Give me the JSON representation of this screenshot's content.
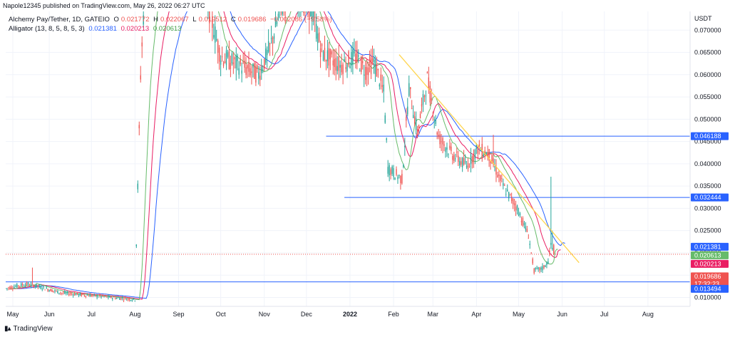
{
  "publish_line": "Napole12345 published on TradingView.com, May 26, 2022 06:27 UTC",
  "symbol_label": "Alchemy Pay/Tether, 1D, GATEIO",
  "ohlc": {
    "o_label": "O",
    "o": "0.021772",
    "h_label": "H",
    "h": "0.022067",
    "l_label": "L",
    "l": "0.019512",
    "c_label": "C",
    "c": "0.019686",
    "change": "−0.002086 (−9.58%)"
  },
  "indicator": {
    "name": "Alligator (13, 8, 5, 8, 5, 3)",
    "jaw": "0.021381",
    "teeth": "0.020213",
    "lips": "0.020613"
  },
  "brand": {
    "icon": "tv-logo-icon",
    "name": "TradingView"
  },
  "colors": {
    "up": "#26a69a",
    "down": "#ef5350",
    "jaw": "#2962ff",
    "teeth": "#e91e63",
    "lips": "#66bb6a",
    "hline": "#2962ff",
    "trend": "#ffd54f"
  },
  "chart_data": {
    "type": "candlestick",
    "currency_label": "USDT",
    "y_ticks": [
      "0.070000",
      "0.065000",
      "0.060000",
      "0.055000",
      "0.050000",
      "0.045000",
      "0.040000",
      "0.035000",
      "0.030000",
      "0.025000",
      "0.020000",
      "0.015000",
      "0.010000"
    ],
    "y_range": [
      0.008,
      0.0742
    ],
    "x_ticks": [
      "May",
      "Jun",
      "Jul",
      "Aug",
      "Sep",
      "Oct",
      "Nov",
      "Dec",
      "2022",
      "Feb",
      "Mar",
      "Apr",
      "May",
      "Jun",
      "Jul",
      "Aug"
    ],
    "x_range": [
      "2021-05-01",
      "2022-08-31"
    ],
    "horizontal_lines": [
      {
        "value": 0.046188,
        "label": "0.046188",
        "from": "2021-12-15"
      },
      {
        "value": 0.032444,
        "label": "0.032444",
        "from": "2021-12-28"
      },
      {
        "value": 0.013494,
        "label": "0.013494",
        "from": "2021-05-01"
      }
    ],
    "trend_line": {
      "from": {
        "x": "2022-02-05",
        "y": 0.0645
      },
      "to": {
        "x": "2022-06-13",
        "y": 0.0178
      }
    },
    "price_labels": [
      {
        "value": 0.021381,
        "label": "0.021381",
        "color": "jaw"
      },
      {
        "value": 0.020613,
        "label": "0.020613",
        "color": "lips"
      },
      {
        "value": 0.020213,
        "label": "0.020213",
        "color": "teeth"
      },
      {
        "value": 0.019686,
        "label": "0.019686",
        "sub": "17:32:23",
        "color": "down"
      }
    ],
    "current_price": 0.019686,
    "close_series": [
      {
        "x": "2021-05-01",
        "y": 0.012
      },
      {
        "x": "2021-05-15",
        "y": 0.013
      },
      {
        "x": "2021-05-20",
        "y": 0.0128
      },
      {
        "x": "2021-06-10",
        "y": 0.011
      },
      {
        "x": "2021-07-15",
        "y": 0.01
      },
      {
        "x": "2021-08-01",
        "y": 0.0095
      },
      {
        "x": "2021-08-05",
        "y": 0.06
      },
      {
        "x": "2021-08-08",
        "y": 0.08
      },
      {
        "x": "2021-08-25",
        "y": 0.085
      },
      {
        "x": "2021-09-20",
        "y": 0.078
      },
      {
        "x": "2021-10-01",
        "y": 0.064
      },
      {
        "x": "2021-10-15",
        "y": 0.062
      },
      {
        "x": "2021-10-28",
        "y": 0.06
      },
      {
        "x": "2021-11-05",
        "y": 0.066
      },
      {
        "x": "2021-11-12",
        "y": 0.074
      },
      {
        "x": "2021-11-20",
        "y": 0.08
      },
      {
        "x": "2021-12-05",
        "y": 0.074
      },
      {
        "x": "2021-12-12",
        "y": 0.065
      },
      {
        "x": "2021-12-25",
        "y": 0.062
      },
      {
        "x": "2022-01-05",
        "y": 0.064
      },
      {
        "x": "2022-01-12",
        "y": 0.061
      },
      {
        "x": "2022-01-18",
        "y": 0.063
      },
      {
        "x": "2022-01-25",
        "y": 0.056
      },
      {
        "x": "2022-01-28",
        "y": 0.039
      },
      {
        "x": "2022-02-07",
        "y": 0.0365
      },
      {
        "x": "2022-02-12",
        "y": 0.057
      },
      {
        "x": "2022-02-18",
        "y": 0.047
      },
      {
        "x": "2022-02-25",
        "y": 0.059
      },
      {
        "x": "2022-03-05",
        "y": 0.046
      },
      {
        "x": "2022-03-15",
        "y": 0.042
      },
      {
        "x": "2022-03-25",
        "y": 0.0395
      },
      {
        "x": "2022-04-02",
        "y": 0.0435
      },
      {
        "x": "2022-04-10",
        "y": 0.042
      },
      {
        "x": "2022-04-20",
        "y": 0.035
      },
      {
        "x": "2022-04-30",
        "y": 0.03
      },
      {
        "x": "2022-05-08",
        "y": 0.024
      },
      {
        "x": "2022-05-12",
        "y": 0.016
      },
      {
        "x": "2022-05-18",
        "y": 0.0165
      },
      {
        "x": "2022-05-22",
        "y": 0.018
      },
      {
        "x": "2022-05-24",
        "y": 0.0218
      },
      {
        "x": "2022-05-26",
        "y": 0.0197
      }
    ]
  }
}
